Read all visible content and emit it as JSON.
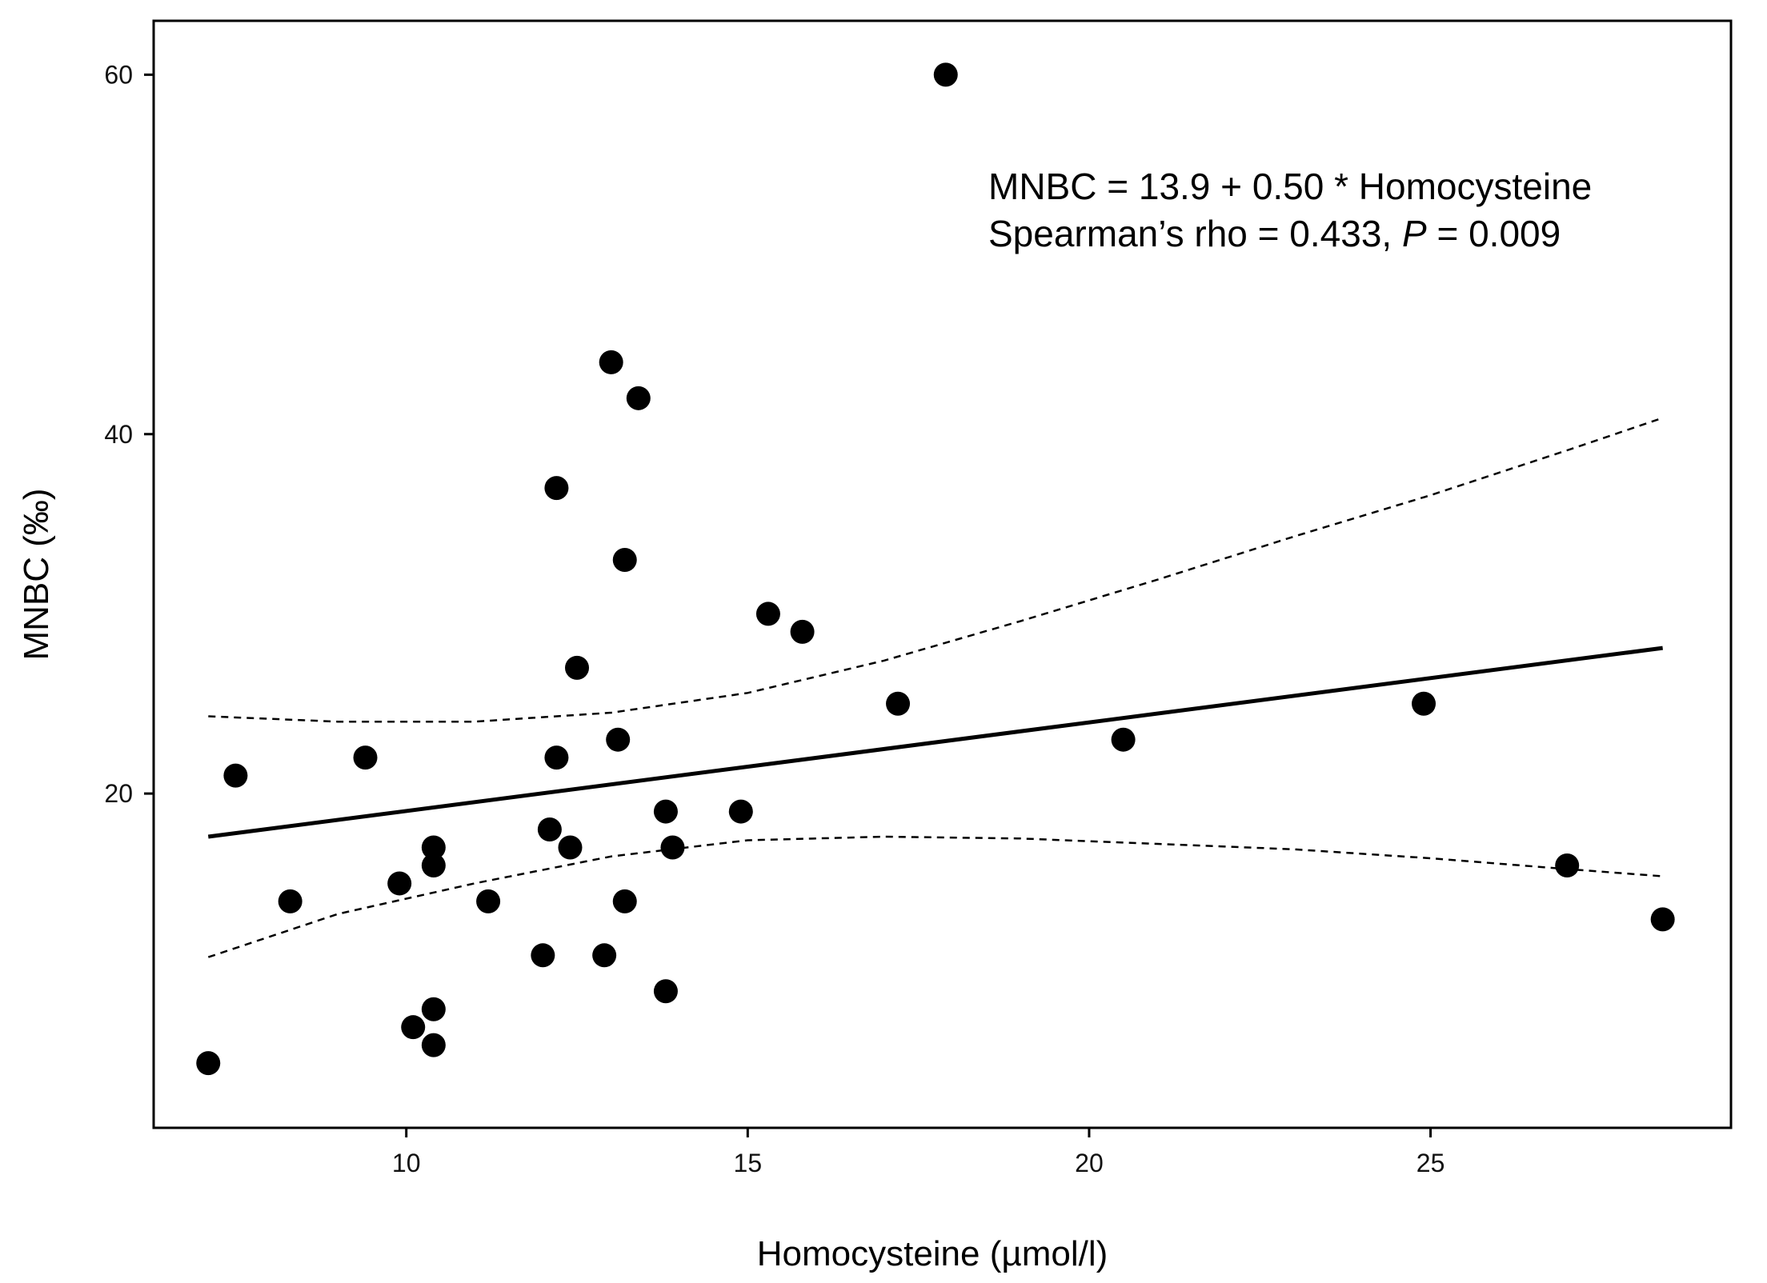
{
  "chart_data": {
    "type": "scatter",
    "title": "",
    "xlabel": "Homocysteine (µmol/l)",
    "ylabel": "MNBC (‰)",
    "xlim": [
      6.3,
      29.4
    ],
    "ylim": [
      1.4,
      63.0
    ],
    "xticks": [
      10,
      15,
      20,
      25
    ],
    "yticks": [
      20,
      40,
      60
    ],
    "grid": false,
    "legend": "none",
    "points": [
      {
        "x": 7.1,
        "y": 5
      },
      {
        "x": 7.5,
        "y": 21
      },
      {
        "x": 8.3,
        "y": 14
      },
      {
        "x": 9.4,
        "y": 22
      },
      {
        "x": 9.9,
        "y": 15
      },
      {
        "x": 10.1,
        "y": 7
      },
      {
        "x": 10.4,
        "y": 17
      },
      {
        "x": 10.4,
        "y": 16
      },
      {
        "x": 10.4,
        "y": 8
      },
      {
        "x": 10.4,
        "y": 6
      },
      {
        "x": 11.2,
        "y": 14
      },
      {
        "x": 12.0,
        "y": 11
      },
      {
        "x": 12.1,
        "y": 18
      },
      {
        "x": 12.2,
        "y": 37
      },
      {
        "x": 12.2,
        "y": 22
      },
      {
        "x": 12.4,
        "y": 17
      },
      {
        "x": 12.5,
        "y": 27
      },
      {
        "x": 12.9,
        "y": 11
      },
      {
        "x": 13.0,
        "y": 44
      },
      {
        "x": 13.1,
        "y": 23
      },
      {
        "x": 13.2,
        "y": 33
      },
      {
        "x": 13.2,
        "y": 14
      },
      {
        "x": 13.4,
        "y": 42
      },
      {
        "x": 13.8,
        "y": 19
      },
      {
        "x": 13.8,
        "y": 9
      },
      {
        "x": 13.9,
        "y": 17
      },
      {
        "x": 14.9,
        "y": 19
      },
      {
        "x": 15.3,
        "y": 30
      },
      {
        "x": 15.8,
        "y": 29
      },
      {
        "x": 17.2,
        "y": 25
      },
      {
        "x": 17.9,
        "y": 60
      },
      {
        "x": 20.5,
        "y": 23
      },
      {
        "x": 24.9,
        "y": 25
      },
      {
        "x": 27.0,
        "y": 16
      },
      {
        "x": 28.4,
        "y": 13
      }
    ],
    "regression": {
      "intercept": 13.9,
      "slope": 0.5,
      "x_range": [
        7.1,
        28.4
      ],
      "y_range": [
        17.6,
        28.1
      ]
    },
    "confidence_band": {
      "upper": [
        {
          "x": 7.1,
          "y": 24.3
        },
        {
          "x": 9.0,
          "y": 24.0
        },
        {
          "x": 11.0,
          "y": 24.0
        },
        {
          "x": 13.0,
          "y": 24.5
        },
        {
          "x": 15.0,
          "y": 25.6
        },
        {
          "x": 17.0,
          "y": 27.4
        },
        {
          "x": 19.0,
          "y": 29.6
        },
        {
          "x": 21.0,
          "y": 31.9
        },
        {
          "x": 23.0,
          "y": 34.3
        },
        {
          "x": 25.0,
          "y": 36.6
        },
        {
          "x": 27.0,
          "y": 39.1
        },
        {
          "x": 28.4,
          "y": 40.9
        }
      ],
      "lower": [
        {
          "x": 7.1,
          "y": 10.9
        },
        {
          "x": 9.0,
          "y": 13.3
        },
        {
          "x": 11.0,
          "y": 15.0
        },
        {
          "x": 13.0,
          "y": 16.5
        },
        {
          "x": 15.0,
          "y": 17.4
        },
        {
          "x": 17.0,
          "y": 17.6
        },
        {
          "x": 19.0,
          "y": 17.5
        },
        {
          "x": 21.0,
          "y": 17.2
        },
        {
          "x": 23.0,
          "y": 16.9
        },
        {
          "x": 25.0,
          "y": 16.4
        },
        {
          "x": 27.0,
          "y": 15.8
        },
        {
          "x": 28.4,
          "y": 15.4
        }
      ]
    },
    "annotations": {
      "equation": "MNBC = 13.9 + 0.50 * Homocysteine",
      "stat_prefix": "Spearman’s rho = 0.433, ",
      "stat_p_symbol": "P",
      "stat_suffix": " = 0.009"
    },
    "colors": {
      "points": "#000000",
      "line": "#000000",
      "axes": "#000000"
    }
  }
}
